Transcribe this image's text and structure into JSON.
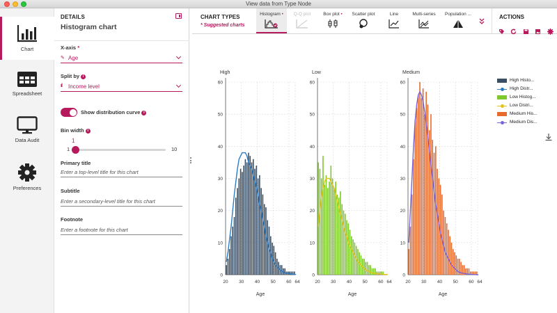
{
  "window": {
    "title": "View data from Type Node"
  },
  "nav": {
    "items": [
      {
        "label": "Chart",
        "icon": "bar-chart-icon"
      },
      {
        "label": "Spreadsheet",
        "icon": "spreadsheet-icon"
      },
      {
        "label": "Data Audit",
        "icon": "monitor-icon"
      },
      {
        "label": "Preferences",
        "icon": "gear-icon"
      }
    ]
  },
  "details": {
    "header": "DETAILS",
    "subtitle": "Histogram chart",
    "xaxis": {
      "label": "X-axis",
      "required_mark": "*",
      "value": "Age"
    },
    "split": {
      "label": "Split by",
      "value": "Income level"
    },
    "toggle": {
      "label": "Show distribution curve",
      "on": true
    },
    "bin_width": {
      "label": "Bin width",
      "value": "1",
      "min": "1",
      "max": "10",
      "level": 0
    },
    "primary_title": {
      "label": "Primary title",
      "placeholder": "Enter a top-level title for this chart"
    },
    "subtitle_field": {
      "label": "Subtitle",
      "placeholder": "Enter a secondary-level title for this chart"
    },
    "footnote": {
      "label": "Footnote",
      "placeholder": "Enter a footnote for this chart"
    }
  },
  "chart_types": {
    "header": "CHART TYPES",
    "suggested": "* Suggested charts",
    "tabs": [
      {
        "label": "Histogram",
        "suggested": true,
        "active": true,
        "disabled": false,
        "icon": "histogram-icon"
      },
      {
        "label": "Q-Q plot",
        "suggested": false,
        "active": false,
        "disabled": true,
        "icon": "qq-plot-icon"
      },
      {
        "label": "Box plot",
        "suggested": true,
        "active": false,
        "disabled": false,
        "icon": "box-plot-icon"
      },
      {
        "label": "Scatter plot",
        "suggested": false,
        "active": false,
        "disabled": false,
        "icon": "scatter-plot-icon"
      },
      {
        "label": "Line",
        "suggested": false,
        "active": false,
        "disabled": false,
        "icon": "line-chart-icon"
      },
      {
        "label": "Multi-series",
        "suggested": false,
        "active": false,
        "disabled": false,
        "icon": "multi-series-icon"
      },
      {
        "label": "Population ...",
        "suggested": false,
        "active": false,
        "disabled": false,
        "icon": "population-pyramid-icon"
      }
    ],
    "more_icon": "double-chevron-down-icon"
  },
  "actions": {
    "header": "ACTIONS",
    "icons": [
      "tag-icon",
      "refresh-icon",
      "save-icon",
      "image-export-icon",
      "settings-icon"
    ]
  },
  "colors": {
    "accent": "#b6195c",
    "high_bars": "#3a4f63",
    "high_curve": "#2c7bc1",
    "low_bars": "#7dc82a",
    "low_curve": "#e3c316",
    "medium_bars": "#e8692c",
    "medium_curve": "#7a63d6"
  },
  "chart_data": {
    "type": "bar",
    "panels": [
      "High",
      "Low",
      "Medium"
    ],
    "xlabel": "Age",
    "xticks": [
      20,
      30,
      40,
      50,
      60,
      64
    ],
    "yticks": [
      0,
      10,
      20,
      30,
      40,
      50,
      60
    ],
    "xlim": [
      20,
      64
    ],
    "ylim": [
      0,
      60
    ],
    "grid": true,
    "legend_position": "right",
    "legend": [
      "High Histo...",
      "High Distr...",
      "Low Histog...",
      "Low Distri...",
      "Medium His...",
      "Medium Dis..."
    ],
    "x": [
      20,
      21,
      22,
      23,
      24,
      25,
      26,
      27,
      28,
      29,
      30,
      31,
      32,
      33,
      34,
      35,
      36,
      37,
      38,
      39,
      40,
      41,
      42,
      43,
      44,
      45,
      46,
      47,
      48,
      49,
      50,
      51,
      52,
      53,
      54,
      55,
      56,
      57,
      58,
      59,
      60,
      61,
      62,
      63,
      64
    ],
    "series": [
      {
        "name": "High Histo...",
        "panel": "High",
        "kind": "histogram",
        "values": [
          3,
          5,
          8,
          12,
          15,
          18,
          24,
          27,
          30,
          33,
          32,
          34,
          36,
          35,
          38,
          37,
          35,
          36,
          33,
          34,
          30,
          31,
          27,
          25,
          22,
          21,
          17,
          15,
          12,
          10,
          9,
          7,
          5,
          4,
          3,
          3,
          2,
          2,
          1,
          1,
          1,
          1,
          1,
          1,
          0
        ]
      },
      {
        "name": "High Distr...",
        "panel": "High",
        "kind": "curve",
        "values": [
          4,
          7,
          11,
          15,
          20,
          25,
          29,
          33,
          36,
          37,
          38,
          38,
          38,
          37,
          35,
          34,
          33,
          31,
          29,
          27,
          25,
          22,
          20,
          17,
          15,
          12,
          10,
          8,
          7,
          5,
          4,
          3,
          2.5,
          2,
          1.5,
          1,
          1,
          0.5,
          0.5,
          0.5,
          0.3,
          0.2,
          0.2,
          0.1,
          0.1
        ]
      },
      {
        "name": "Low Histog...",
        "panel": "Low",
        "kind": "histogram",
        "values": [
          35,
          33,
          30,
          37,
          28,
          31,
          27,
          29,
          34,
          30,
          27,
          29,
          25,
          24,
          26,
          22,
          20,
          19,
          17,
          16,
          14,
          12,
          11,
          10,
          9,
          8,
          7,
          6,
          5,
          5,
          4,
          4,
          3,
          3,
          2,
          2,
          2,
          1,
          1,
          1,
          1,
          1,
          0,
          0,
          0
        ]
      },
      {
        "name": "Low Distri...",
        "panel": "Low",
        "kind": "curve",
        "values": [
          15,
          20,
          24,
          27,
          29,
          30,
          30,
          30,
          29,
          28,
          27,
          25,
          23,
          21,
          19,
          17,
          15,
          13,
          12,
          10,
          9,
          8,
          7,
          6,
          5,
          4,
          3.5,
          3,
          2.5,
          2,
          1.5,
          1.2,
          1,
          0.8,
          0.6,
          0.5,
          0.4,
          0.3,
          0.3,
          0.2,
          0.2,
          0.1,
          0.1,
          0.1,
          0.1
        ]
      },
      {
        "name": "Medium His...",
        "panel": "Medium",
        "kind": "histogram",
        "values": [
          8,
          15,
          25,
          36,
          48,
          52,
          56,
          60,
          55,
          58,
          50,
          57,
          53,
          45,
          50,
          42,
          38,
          40,
          33,
          30,
          28,
          25,
          20,
          18,
          16,
          14,
          12,
          10,
          8,
          7,
          6,
          5,
          5,
          4,
          3,
          3,
          2,
          2,
          2,
          1,
          1,
          1,
          1,
          1,
          0
        ]
      },
      {
        "name": "Medium Dis...",
        "panel": "Medium",
        "kind": "curve",
        "values": [
          10,
          20,
          30,
          40,
          48,
          53,
          56,
          57,
          56,
          54,
          51,
          47,
          43,
          39,
          34,
          30,
          26,
          22,
          19,
          16,
          13,
          11,
          9,
          7,
          6,
          5,
          4,
          3,
          2.5,
          2,
          1.5,
          1,
          0.8,
          0.6,
          0.5,
          0.4,
          0.3,
          0.2,
          0.2,
          0.1,
          0.1,
          0.1,
          0.1,
          0,
          0
        ]
      }
    ]
  }
}
